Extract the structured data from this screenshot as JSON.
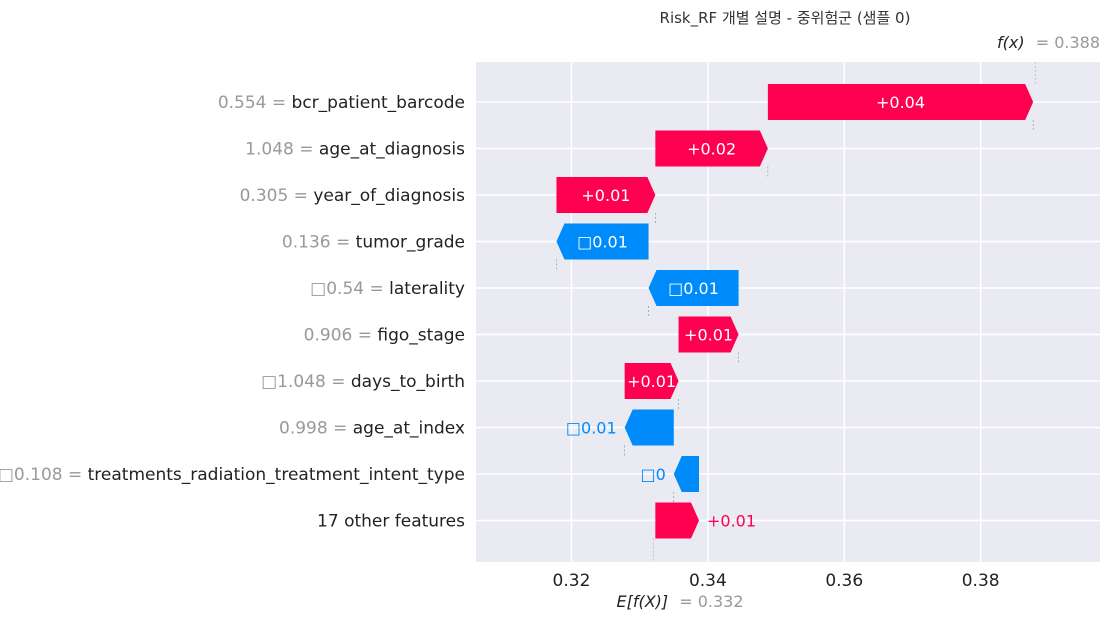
{
  "chart_data": {
    "type": "waterfall",
    "title": "Risk_RF 개별 설명 - 중위험군 (샘플 0)",
    "fx_label": "f(x)",
    "fx_value": "= 0.388",
    "fx_numeric": 0.388,
    "ex_label": "E[f(X)]",
    "ex_value": "= 0.332",
    "ex_numeric": 0.332,
    "xlim": [
      0.306,
      0.3975
    ],
    "xticks": [
      {
        "value": 0.32,
        "label": "0.32"
      },
      {
        "value": 0.34,
        "label": "0.34"
      },
      {
        "value": 0.36,
        "label": "0.36"
      },
      {
        "value": 0.38,
        "label": "0.38"
      }
    ],
    "grid": true,
    "colors": {
      "positive": "#ff0051",
      "negative": "#008bfb",
      "background": "#eaeaf2",
      "value_text": "#999999"
    },
    "features": [
      {
        "value": "0.554 =",
        "name": "bcr_patient_barcode",
        "start": 0.3488,
        "end": 0.3877,
        "label": "+0.04",
        "label_inside": true
      },
      {
        "value": "1.048 =",
        "name": "age_at_diagnosis",
        "start": 0.3323,
        "end": 0.3488,
        "label": "+0.02",
        "label_inside": true
      },
      {
        "value": "0.305 =",
        "name": "year_of_diagnosis",
        "start": 0.3178,
        "end": 0.3323,
        "label": "+0.01",
        "label_inside": true
      },
      {
        "value": "0.136 =",
        "name": "tumor_grade",
        "start": 0.3313,
        "end": 0.3178,
        "label": "□0.01",
        "label_inside": true
      },
      {
        "value": "□0.54 =",
        "name": "laterality",
        "start": 0.3445,
        "end": 0.3313,
        "label": "□0.01",
        "label_inside": true
      },
      {
        "value": "0.906 =",
        "name": "figo_stage",
        "start": 0.3357,
        "end": 0.3445,
        "label": "+0.01",
        "label_inside": true
      },
      {
        "value": "□1.048 =",
        "name": "days_to_birth",
        "start": 0.3278,
        "end": 0.3357,
        "label": "+0.01",
        "label_inside": true
      },
      {
        "value": "0.998 =",
        "name": "age_at_index",
        "start": 0.335,
        "end": 0.3278,
        "label": "□0.01",
        "label_inside": false
      },
      {
        "value": "□0.108 =",
        "name": "treatments_radiation_treatment_intent_type",
        "start": 0.3387,
        "end": 0.335,
        "label": "□0",
        "label_inside": false
      },
      {
        "value": "",
        "name": "17 other features",
        "start": 0.3323,
        "end": 0.3387,
        "label": "+0.01",
        "label_inside": false
      }
    ]
  }
}
